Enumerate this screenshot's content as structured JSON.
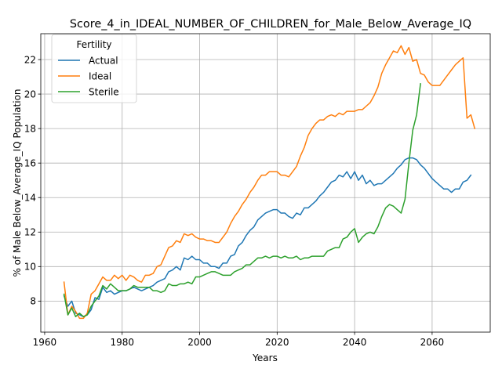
{
  "chart_data": {
    "type": "line",
    "title": "Score_4_in_IDEAL_NUMBER_OF_CHILDREN_for_Male_Below_Average_IQ",
    "xlabel": "Years",
    "ylabel": "% of Male Below_Average_IQ Population",
    "xlim": [
      1959,
      2075
    ],
    "ylim": [
      6.2,
      23.5
    ],
    "xticks": [
      1960,
      1980,
      2000,
      2020,
      2040,
      2060
    ],
    "yticks": [
      8,
      10,
      12,
      14,
      16,
      18,
      20,
      22
    ],
    "grid": true,
    "legend": {
      "title": "Fertility",
      "placement": "top-left"
    },
    "series": [
      {
        "name": "Actual",
        "color": "#1f77b4",
        "points": [
          [
            1965,
            8.3
          ],
          [
            1966,
            7.7
          ],
          [
            1967,
            8.0
          ],
          [
            1968,
            7.3
          ],
          [
            1969,
            7.2
          ],
          [
            1970,
            7.1
          ],
          [
            1971,
            7.2
          ],
          [
            1972,
            7.5
          ],
          [
            1973,
            8.2
          ],
          [
            1974,
            8.1
          ],
          [
            1975,
            8.8
          ],
          [
            1976,
            8.5
          ],
          [
            1977,
            8.6
          ],
          [
            1978,
            8.4
          ],
          [
            1979,
            8.5
          ],
          [
            1980,
            8.6
          ],
          [
            1981,
            8.6
          ],
          [
            1982,
            8.7
          ],
          [
            1983,
            8.8
          ],
          [
            1984,
            8.7
          ],
          [
            1985,
            8.6
          ],
          [
            1986,
            8.7
          ],
          [
            1987,
            8.8
          ],
          [
            1988,
            8.9
          ],
          [
            1989,
            9.1
          ],
          [
            1990,
            9.2
          ],
          [
            1991,
            9.3
          ],
          [
            1992,
            9.7
          ],
          [
            1993,
            9.8
          ],
          [
            1994,
            10.0
          ],
          [
            1995,
            9.8
          ],
          [
            1996,
            10.5
          ],
          [
            1997,
            10.4
          ],
          [
            1998,
            10.6
          ],
          [
            1999,
            10.4
          ],
          [
            2000,
            10.4
          ],
          [
            2001,
            10.2
          ],
          [
            2002,
            10.2
          ],
          [
            2003,
            10.0
          ],
          [
            2004,
            10.0
          ],
          [
            2005,
            9.9
          ],
          [
            2006,
            10.2
          ],
          [
            2007,
            10.2
          ],
          [
            2008,
            10.6
          ],
          [
            2009,
            10.7
          ],
          [
            2010,
            11.2
          ],
          [
            2011,
            11.4
          ],
          [
            2012,
            11.8
          ],
          [
            2013,
            12.1
          ],
          [
            2014,
            12.3
          ],
          [
            2015,
            12.7
          ],
          [
            2016,
            12.9
          ],
          [
            2017,
            13.1
          ],
          [
            2018,
            13.2
          ],
          [
            2019,
            13.3
          ],
          [
            2020,
            13.3
          ],
          [
            2021,
            13.1
          ],
          [
            2022,
            13.1
          ],
          [
            2023,
            12.9
          ],
          [
            2024,
            12.8
          ],
          [
            2025,
            13.1
          ],
          [
            2026,
            13.0
          ],
          [
            2027,
            13.4
          ],
          [
            2028,
            13.4
          ],
          [
            2029,
            13.6
          ],
          [
            2030,
            13.8
          ],
          [
            2031,
            14.1
          ],
          [
            2032,
            14.3
          ],
          [
            2033,
            14.6
          ],
          [
            2034,
            14.9
          ],
          [
            2035,
            15.0
          ],
          [
            2036,
            15.3
          ],
          [
            2037,
            15.2
          ],
          [
            2038,
            15.5
          ],
          [
            2039,
            15.1
          ],
          [
            2040,
            15.5
          ],
          [
            2041,
            15.0
          ],
          [
            2042,
            15.3
          ],
          [
            2043,
            14.8
          ],
          [
            2044,
            15.0
          ],
          [
            2045,
            14.7
          ],
          [
            2046,
            14.8
          ],
          [
            2047,
            14.8
          ],
          [
            2048,
            15.0
          ],
          [
            2049,
            15.2
          ],
          [
            2050,
            15.4
          ],
          [
            2051,
            15.7
          ],
          [
            2052,
            15.9
          ],
          [
            2053,
            16.2
          ],
          [
            2054,
            16.3
          ],
          [
            2055,
            16.3
          ],
          [
            2056,
            16.2
          ],
          [
            2057,
            15.9
          ],
          [
            2058,
            15.7
          ],
          [
            2059,
            15.4
          ],
          [
            2060,
            15.1
          ],
          [
            2061,
            14.9
          ],
          [
            2062,
            14.7
          ],
          [
            2063,
            14.5
          ],
          [
            2064,
            14.5
          ],
          [
            2065,
            14.3
          ],
          [
            2066,
            14.5
          ],
          [
            2067,
            14.5
          ],
          [
            2068,
            14.9
          ],
          [
            2069,
            15.0
          ],
          [
            2070,
            15.3
          ]
        ]
      },
      {
        "name": "Ideal",
        "color": "#ff7f0e",
        "points": [
          [
            1965,
            9.1
          ],
          [
            1966,
            7.2
          ],
          [
            1967,
            7.7
          ],
          [
            1968,
            7.4
          ],
          [
            1969,
            7.0
          ],
          [
            1970,
            7.0
          ],
          [
            1971,
            7.3
          ],
          [
            1972,
            8.4
          ],
          [
            1973,
            8.6
          ],
          [
            1974,
            9.0
          ],
          [
            1975,
            9.4
          ],
          [
            1976,
            9.2
          ],
          [
            1977,
            9.2
          ],
          [
            1978,
            9.5
          ],
          [
            1979,
            9.3
          ],
          [
            1980,
            9.5
          ],
          [
            1981,
            9.2
          ],
          [
            1982,
            9.5
          ],
          [
            1983,
            9.4
          ],
          [
            1984,
            9.2
          ],
          [
            1985,
            9.1
          ],
          [
            1986,
            9.5
          ],
          [
            1987,
            9.5
          ],
          [
            1988,
            9.6
          ],
          [
            1989,
            10.0
          ],
          [
            1990,
            10.1
          ],
          [
            1991,
            10.6
          ],
          [
            1992,
            11.1
          ],
          [
            1993,
            11.2
          ],
          [
            1994,
            11.5
          ],
          [
            1995,
            11.4
          ],
          [
            1996,
            11.9
          ],
          [
            1997,
            11.8
          ],
          [
            1998,
            11.9
          ],
          [
            1999,
            11.7
          ],
          [
            2000,
            11.6
          ],
          [
            2001,
            11.6
          ],
          [
            2002,
            11.5
          ],
          [
            2003,
            11.5
          ],
          [
            2004,
            11.4
          ],
          [
            2005,
            11.4
          ],
          [
            2006,
            11.7
          ],
          [
            2007,
            12.0
          ],
          [
            2008,
            12.5
          ],
          [
            2009,
            12.9
          ],
          [
            2010,
            13.2
          ],
          [
            2011,
            13.6
          ],
          [
            2012,
            13.9
          ],
          [
            2013,
            14.3
          ],
          [
            2014,
            14.6
          ],
          [
            2015,
            15.0
          ],
          [
            2016,
            15.3
          ],
          [
            2017,
            15.3
          ],
          [
            2018,
            15.5
          ],
          [
            2019,
            15.5
          ],
          [
            2020,
            15.5
          ],
          [
            2021,
            15.3
          ],
          [
            2022,
            15.3
          ],
          [
            2023,
            15.2
          ],
          [
            2024,
            15.5
          ],
          [
            2025,
            15.8
          ],
          [
            2026,
            16.4
          ],
          [
            2027,
            16.9
          ],
          [
            2028,
            17.6
          ],
          [
            2029,
            18.0
          ],
          [
            2030,
            18.3
          ],
          [
            2031,
            18.5
          ],
          [
            2032,
            18.5
          ],
          [
            2033,
            18.7
          ],
          [
            2034,
            18.8
          ],
          [
            2035,
            18.7
          ],
          [
            2036,
            18.9
          ],
          [
            2037,
            18.8
          ],
          [
            2038,
            19.0
          ],
          [
            2039,
            19.0
          ],
          [
            2040,
            19.0
          ],
          [
            2041,
            19.1
          ],
          [
            2042,
            19.1
          ],
          [
            2043,
            19.3
          ],
          [
            2044,
            19.5
          ],
          [
            2045,
            19.9
          ],
          [
            2046,
            20.4
          ],
          [
            2047,
            21.2
          ],
          [
            2048,
            21.7
          ],
          [
            2049,
            22.1
          ],
          [
            2050,
            22.5
          ],
          [
            2051,
            22.4
          ],
          [
            2052,
            22.8
          ],
          [
            2053,
            22.3
          ],
          [
            2054,
            22.7
          ],
          [
            2055,
            21.9
          ],
          [
            2056,
            22.0
          ],
          [
            2057,
            21.2
          ],
          [
            2058,
            21.1
          ],
          [
            2059,
            20.7
          ],
          [
            2060,
            20.5
          ],
          [
            2061,
            20.5
          ],
          [
            2062,
            20.5
          ],
          [
            2063,
            20.8
          ],
          [
            2064,
            21.1
          ],
          [
            2065,
            21.4
          ],
          [
            2066,
            21.7
          ],
          [
            2067,
            21.9
          ],
          [
            2068,
            22.1
          ],
          [
            2069,
            18.6
          ],
          [
            2070,
            18.8
          ],
          [
            2071,
            18.0
          ]
        ]
      },
      {
        "name": "Sterile",
        "color": "#2ca02c",
        "points": [
          [
            1965,
            8.4
          ],
          [
            1966,
            7.2
          ],
          [
            1967,
            7.6
          ],
          [
            1968,
            7.1
          ],
          [
            1969,
            7.3
          ],
          [
            1970,
            7.1
          ],
          [
            1971,
            7.2
          ],
          [
            1972,
            7.7
          ],
          [
            1973,
            8.0
          ],
          [
            1974,
            8.3
          ],
          [
            1975,
            8.9
          ],
          [
            1976,
            8.7
          ],
          [
            1977,
            9.0
          ],
          [
            1978,
            8.8
          ],
          [
            1979,
            8.6
          ],
          [
            1980,
            8.6
          ],
          [
            1981,
            8.6
          ],
          [
            1982,
            8.7
          ],
          [
            1983,
            8.9
          ],
          [
            1984,
            8.8
          ],
          [
            1985,
            8.8
          ],
          [
            1986,
            8.8
          ],
          [
            1987,
            8.8
          ],
          [
            1988,
            8.6
          ],
          [
            1989,
            8.6
          ],
          [
            1990,
            8.5
          ],
          [
            1991,
            8.6
          ],
          [
            1992,
            9.0
          ],
          [
            1993,
            8.9
          ],
          [
            1994,
            8.9
          ],
          [
            1995,
            9.0
          ],
          [
            1996,
            9.0
          ],
          [
            1997,
            9.1
          ],
          [
            1998,
            9.0
          ],
          [
            1999,
            9.4
          ],
          [
            2000,
            9.4
          ],
          [
            2001,
            9.5
          ],
          [
            2002,
            9.6
          ],
          [
            2003,
            9.7
          ],
          [
            2004,
            9.7
          ],
          [
            2005,
            9.6
          ],
          [
            2006,
            9.5
          ],
          [
            2007,
            9.5
          ],
          [
            2008,
            9.5
          ],
          [
            2009,
            9.7
          ],
          [
            2010,
            9.8
          ],
          [
            2011,
            9.9
          ],
          [
            2012,
            10.1
          ],
          [
            2013,
            10.1
          ],
          [
            2014,
            10.3
          ],
          [
            2015,
            10.5
          ],
          [
            2016,
            10.5
          ],
          [
            2017,
            10.6
          ],
          [
            2018,
            10.5
          ],
          [
            2019,
            10.6
          ],
          [
            2020,
            10.6
          ],
          [
            2021,
            10.5
          ],
          [
            2022,
            10.6
          ],
          [
            2023,
            10.5
          ],
          [
            2024,
            10.5
          ],
          [
            2025,
            10.6
          ],
          [
            2026,
            10.4
          ],
          [
            2027,
            10.5
          ],
          [
            2028,
            10.5
          ],
          [
            2029,
            10.6
          ],
          [
            2030,
            10.6
          ],
          [
            2031,
            10.6
          ],
          [
            2032,
            10.6
          ],
          [
            2033,
            10.9
          ],
          [
            2034,
            11.0
          ],
          [
            2035,
            11.1
          ],
          [
            2036,
            11.1
          ],
          [
            2037,
            11.6
          ],
          [
            2038,
            11.7
          ],
          [
            2039,
            12.0
          ],
          [
            2040,
            12.2
          ],
          [
            2041,
            11.4
          ],
          [
            2042,
            11.7
          ],
          [
            2043,
            11.9
          ],
          [
            2044,
            12.0
          ],
          [
            2045,
            11.9
          ],
          [
            2046,
            12.3
          ],
          [
            2047,
            12.9
          ],
          [
            2048,
            13.4
          ],
          [
            2049,
            13.6
          ],
          [
            2050,
            13.5
          ],
          [
            2051,
            13.3
          ],
          [
            2052,
            13.1
          ],
          [
            2053,
            13.9
          ],
          [
            2054,
            16.0
          ],
          [
            2055,
            17.9
          ],
          [
            2056,
            18.8
          ],
          [
            2057,
            20.6
          ]
        ]
      }
    ]
  }
}
